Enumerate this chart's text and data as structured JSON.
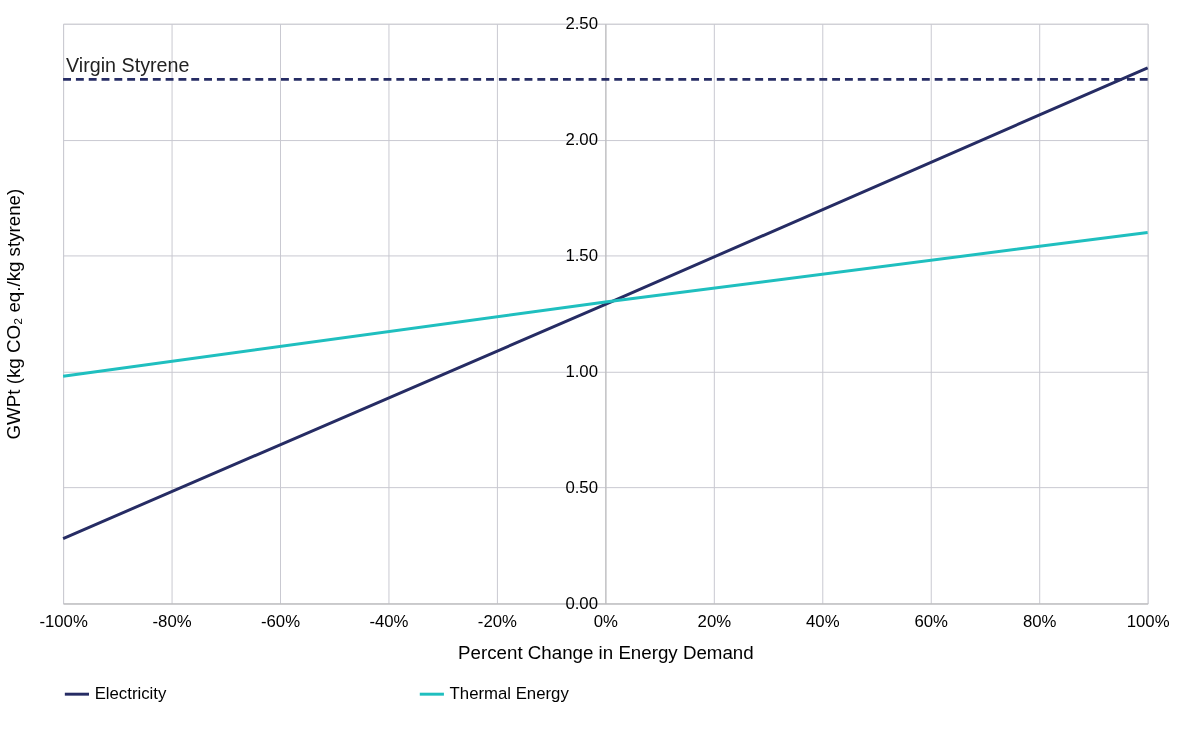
{
  "chart_data": {
    "type": "line",
    "xlabel": "Percent Change in Energy Demand",
    "ylabel": "GWPt (kg CO₂ eq./kg styrene)",
    "x": [
      -100,
      0,
      100
    ],
    "series": [
      {
        "name": "Electricity",
        "color": "#262c64",
        "values": [
          0.28,
          1.29,
          2.31
        ]
      },
      {
        "name": "Thermal Energy",
        "color": "#1fbfbf",
        "values": [
          0.98,
          1.3,
          1.6
        ]
      }
    ],
    "xlim": [
      -100,
      100
    ],
    "xticks": [
      {
        "value": -100,
        "label": "-100%"
      },
      {
        "value": -80,
        "label": "-80%"
      },
      {
        "value": -60,
        "label": "-60%"
      },
      {
        "value": -40,
        "label": "-40%"
      },
      {
        "value": -20,
        "label": "-20%"
      },
      {
        "value": 0,
        "label": "0%"
      },
      {
        "value": 20,
        "label": "20%"
      },
      {
        "value": 40,
        "label": "40%"
      },
      {
        "value": 60,
        "label": "60%"
      },
      {
        "value": 80,
        "label": "80%"
      },
      {
        "value": 100,
        "label": "100%"
      }
    ],
    "ylim": [
      0,
      2.5
    ],
    "yticks": [
      {
        "value": 0,
        "label": "0.00"
      },
      {
        "value": 0.5,
        "label": "0.50"
      },
      {
        "value": 1,
        "label": "1.00"
      },
      {
        "value": 1.5,
        "label": "1.50"
      },
      {
        "value": 2,
        "label": "2.00"
      },
      {
        "value": 2.5,
        "label": "2.50"
      }
    ],
    "ref_lines": [
      {
        "axis": "y",
        "value": 2.26,
        "label": "Virgin Styrene",
        "color": "#262c64",
        "line_style": "dashed"
      }
    ],
    "grid": true,
    "legend": "bottom",
    "marker": "none",
    "line_style": "solid"
  }
}
